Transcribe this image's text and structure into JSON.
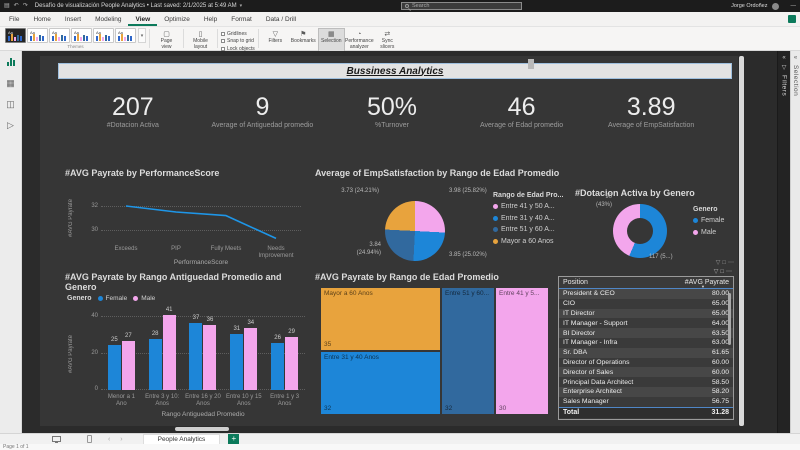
{
  "window": {
    "title": "Desafío de visualización People Analytics • Last saved: 2/1/2025 at 5:49 AM",
    "search_placeholder": "Search",
    "user_name": "Jorge Ordoñez"
  },
  "ribbon": {
    "tabs": [
      "File",
      "Home",
      "Insert",
      "Modeling",
      "View",
      "Optimize",
      "Help",
      "Format",
      "Data / Drill"
    ],
    "active_tab": "View",
    "themes": {
      "thumb_label": "Aa",
      "group_label": "Themes",
      "count": 6,
      "bar_colors": [
        "#2e66c9",
        "#e8a33d",
        "#f3a6ec",
        "#31699e",
        "#2e66c9"
      ]
    },
    "page_view": {
      "label": "Page view",
      "group_label": "Scale to fit"
    },
    "mobile": {
      "label": "Mobile layout",
      "group_label": "Mobile"
    },
    "page_options": {
      "group_label": "Page options",
      "items": [
        "Gridlines",
        "Snap to grid",
        "Lock objects"
      ]
    },
    "show_panes": {
      "group_label": "Show panes",
      "buttons": [
        {
          "label": "Filters",
          "icon": "filter-icon",
          "glyph": "▽",
          "active": false
        },
        {
          "label": "Bookmarks",
          "icon": "bookmark-icon",
          "glyph": "⚑",
          "active": false
        },
        {
          "label": "Selection",
          "icon": "selection-icon",
          "glyph": "▦",
          "active": true
        },
        {
          "label": "Performance analyzer",
          "icon": "performance-icon",
          "glyph": "◔",
          "active": false
        },
        {
          "label": "Sync slicers",
          "icon": "sync-icon",
          "glyph": "⇄",
          "active": false
        }
      ]
    }
  },
  "panes": {
    "filters_label": "Filters",
    "selection_label": "Selection"
  },
  "colors": {
    "blue": "#1d86d8",
    "pink": "#f3a6ec",
    "dark_blue": "#31699e",
    "orange": "#e8a33d",
    "line_blue": "#1e96e8",
    "table_accent": "#4f86c6",
    "app_green": "#0c7a5b"
  },
  "report": {
    "banner_title": "Bussiness Analytics",
    "kpis": [
      {
        "value": "207",
        "label": "#Dotacion Activa"
      },
      {
        "value": "9",
        "label": "Average of Antiguedad promedio"
      },
      {
        "value": "50%",
        "label": "%Turnover"
      },
      {
        "value": "46",
        "label": "Average of Edad promedio"
      },
      {
        "value": "3.89",
        "label": "Average of EmpSatisfaction"
      }
    ],
    "line_chart": {
      "type": "line",
      "title": "#AVG Payrate by PerformanceScore",
      "y_label": "#AVG Payrate",
      "x_label": "PerformanceScore",
      "categories": [
        "Exceeds",
        "PIP",
        "Fully Meets",
        "Needs Improvement"
      ],
      "values": [
        32,
        31.5,
        31.2,
        29.3
      ],
      "y_ticks": [
        32,
        30
      ],
      "y_domain": [
        29,
        33
      ]
    },
    "pie_chart": {
      "type": "pie",
      "title": "Average of EmpSatisfaction by Rango de Edad Promedio",
      "legend_title": "Rango de Edad Pro...",
      "slices": [
        {
          "label": "Entre 41 y 50 A...",
          "value": 3.98,
          "pct": 25.82,
          "callout": "3.98 (25.82%)",
          "color_key": "pink"
        },
        {
          "label": "Entre 31 y 40 A...",
          "value": 3.85,
          "pct": 25.02,
          "callout": "3.85 (25.02%)",
          "color_key": "blue"
        },
        {
          "label": "Entre 51 y 60 A...",
          "value": 3.84,
          "pct": 24.94,
          "callout": "3.84\n(24.94%)",
          "color_key": "dark_blue"
        },
        {
          "label": "Mayor a 60 Anos",
          "value": 3.73,
          "pct": 24.21,
          "callout": "3.73 (24.21%)",
          "color_key": "orange"
        }
      ]
    },
    "donut_chart": {
      "type": "donut",
      "title": "#Dotacion Activa by Genero",
      "legend_title": "Genero",
      "slices": [
        {
          "label": "Female",
          "value": 117,
          "callout": "117 (5...)",
          "color_key": "blue"
        },
        {
          "label": "Male",
          "value": 90,
          "callout": "90\n(43%)",
          "color_key": "pink"
        }
      ]
    },
    "bar_chart": {
      "type": "bar",
      "title": "#AVG Payrate by Rango Antiguedad Promedio and Genero",
      "legend_title": "Genero",
      "y_label": "#AVG Payrate",
      "x_label": "Rango Antiguedad Promedio",
      "y_ticks": [
        0,
        20,
        40
      ],
      "categories": [
        "Menor a 1 Ano",
        "Entre 3 y 10: Anos",
        "Entre 16 y 20 Anos",
        "Entre 10 y 15 Anos",
        "Entre 1 y 3 Anos"
      ],
      "series": [
        {
          "name": "Female",
          "color_key": "blue",
          "values": [
            25,
            28,
            37,
            31,
            26
          ]
        },
        {
          "name": "Male",
          "color_key": "pink",
          "values": [
            27,
            41,
            36,
            34,
            29
          ]
        }
      ]
    },
    "treemap": {
      "type": "treemap",
      "title": "#AVG Payrate by Rango de Edad Promedio",
      "tiles": [
        {
          "label": "Mayor a 60 Anos",
          "value": 35,
          "color_key": "orange"
        },
        {
          "label": "Entre 31 y 40 Anos",
          "value": 32,
          "color_key": "blue"
        },
        {
          "label": "Entre 51 y 60...",
          "value": 32,
          "color_key": "dark_blue"
        },
        {
          "label": "Entre 41 y 5...",
          "value": 30,
          "color_key": "pink"
        }
      ]
    },
    "table": {
      "columns": [
        "Position",
        "#AVG Payrate"
      ],
      "rows": [
        [
          "President & CEO",
          "80.00"
        ],
        [
          "CIO",
          "65.00"
        ],
        [
          "IT Director",
          "65.00"
        ],
        [
          "IT Manager - Support",
          "64.00"
        ],
        [
          "BI Director",
          "63.50"
        ],
        [
          "IT Manager - Infra",
          "63.00"
        ],
        [
          "Sr. DBA",
          "61.65"
        ],
        [
          "Director of Operations",
          "60.00"
        ],
        [
          "Director of Sales",
          "60.00"
        ],
        [
          "Principal Data Architect",
          "58.50"
        ],
        [
          "Enterprise Architect",
          "58.20"
        ],
        [
          "Sales Manager",
          "56.75"
        ]
      ],
      "total": [
        "Total",
        "31.28"
      ]
    }
  },
  "footer": {
    "page_tab": "People Analytics",
    "page_info": "Page 1 of 1"
  }
}
